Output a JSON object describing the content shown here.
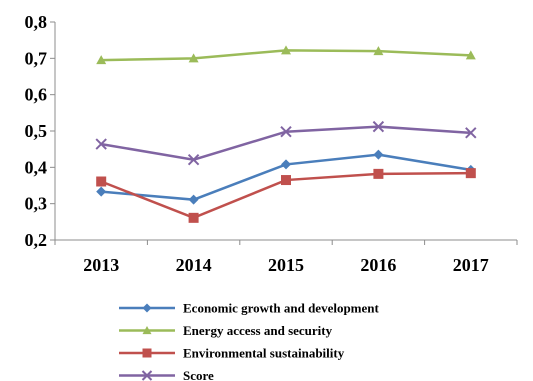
{
  "chart_data": {
    "type": "line",
    "x": [
      "2013",
      "2014",
      "2015",
      "2016",
      "2017"
    ],
    "ylim": [
      0.2,
      0.8
    ],
    "y_ticks": [
      "0,2",
      "0,3",
      "0,4",
      "0,5",
      "0,6",
      "0,7",
      "0,8"
    ],
    "y_tick_values": [
      0.2,
      0.3,
      0.4,
      0.5,
      0.6,
      0.7,
      0.8
    ],
    "grid": false,
    "legend_position": "bottom",
    "series": [
      {
        "name": "Economic growth and development",
        "color": "#4a7ebb",
        "marker": "diamond",
        "values": [
          0.333,
          0.311,
          0.408,
          0.435,
          0.393
        ]
      },
      {
        "name": "Energy access and security",
        "color": "#9bbb59",
        "marker": "triangle",
        "values": [
          0.695,
          0.7,
          0.722,
          0.72,
          0.708
        ]
      },
      {
        "name": "Environmental sustainability",
        "color": "#c0504d",
        "marker": "square",
        "values": [
          0.361,
          0.261,
          0.365,
          0.382,
          0.384
        ]
      },
      {
        "name": "Score",
        "color": "#8064a2",
        "marker": "cross",
        "values": [
          0.464,
          0.421,
          0.498,
          0.512,
          0.495
        ]
      }
    ]
  }
}
